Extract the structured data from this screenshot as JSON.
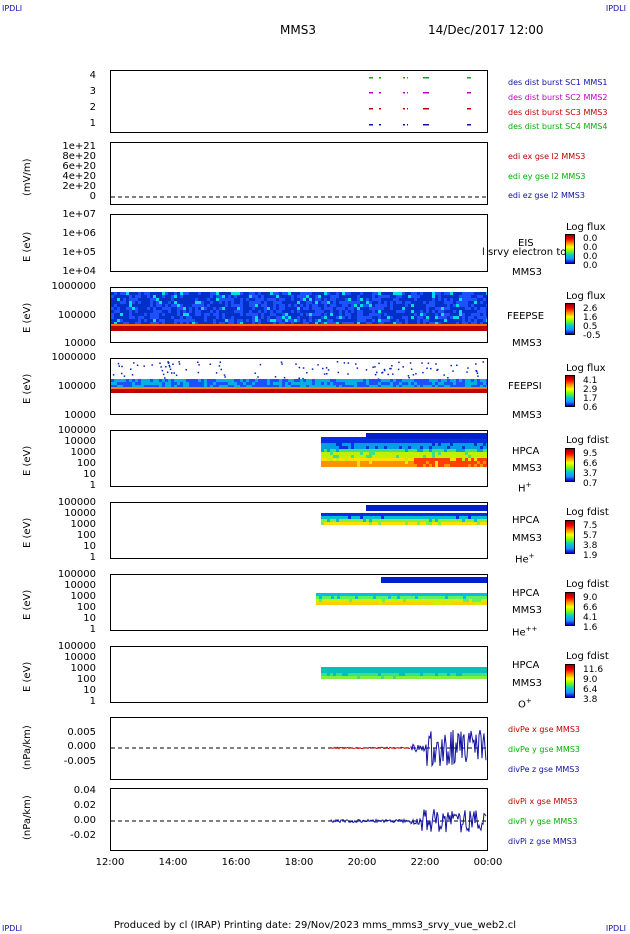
{
  "header": {
    "corner_tl": "IPDLI",
    "corner_tr": "IPDLI",
    "corner_bl": "IPDLI",
    "corner_br": "IPDLI",
    "spacecraft": "MMS3",
    "datetime": "14/Dec/2017 12:00"
  },
  "footer": {
    "text": "Produced by cl (IRAP)   Printing date: 29/Nov/2023   mms_mms3_srvy_vue_web2.cl"
  },
  "colors": {
    "sc1": "#1010a0",
    "sc2": "#c000c0",
    "sc3": "#c00000",
    "sc4": "#00b000"
  },
  "chart_data": {
    "type": "multi-panel",
    "x_axis": {
      "ticks": [
        "12:00",
        "14:00",
        "16:00",
        "18:00",
        "20:00",
        "22:00",
        "00:00"
      ]
    },
    "panels": [
      {
        "id": "burst",
        "type": "timeline",
        "yticks": [
          "4",
          "3",
          "2",
          "1"
        ],
        "legend": [
          {
            "text": "des dist burst SC1 MMS1",
            "color": "#1010a0"
          },
          {
            "text": "des dist burst SC2 MMS2",
            "color": "#c000c0"
          },
          {
            "text": "des dist burst SC3 MMS3",
            "color": "#c00000"
          },
          {
            "text": "des dist burst SC4 MMS4",
            "color": "#00b000"
          }
        ]
      },
      {
        "id": "edi",
        "type": "line",
        "ylabel": "(mV/m)",
        "yticks": [
          "1e+21",
          "8e+20",
          "6e+20",
          "4e+20",
          "2e+20",
          "0"
        ],
        "legend": [
          {
            "text": "edi ex gse l2 MMS3",
            "color": "#c00000"
          },
          {
            "text": "edi ey gse l2 MMS3",
            "color": "#00b000"
          },
          {
            "text": "edi ez gse l2 MMS3",
            "color": "#1010a0"
          }
        ]
      },
      {
        "id": "eis",
        "type": "heatmap",
        "ylabel": "E (eV)",
        "yticks": [
          "1e+07",
          "1e+06",
          "1e+05",
          "1e+04"
        ],
        "instrument": "EIS",
        "overlay": "l srvy electron to",
        "spacecraft": "MMS3",
        "cb_title": "Log flux",
        "cb_values": [
          "0.0",
          "0.0",
          "0.0",
          "0.0"
        ]
      },
      {
        "id": "feepse",
        "type": "heatmap",
        "ylabel": "E (eV)",
        "yticks": [
          "1000000",
          "100000",
          "10000"
        ],
        "instrument": "FEEPSE",
        "spacecraft": "MMS3",
        "cb_title": "Log flux",
        "cb_values": [
          "2.6",
          "1.6",
          "0.5",
          "-0.5"
        ]
      },
      {
        "id": "feepsi",
        "type": "heatmap",
        "ylabel": "E (eV)",
        "yticks": [
          "1000000",
          "100000",
          "10000"
        ],
        "instrument": "FEEPSI",
        "spacecraft": "MMS3",
        "cb_title": "Log flux",
        "cb_values": [
          "4.1",
          "2.9",
          "1.7",
          "0.6"
        ]
      },
      {
        "id": "hpca_h",
        "type": "heatmap",
        "ylabel": "E (eV)",
        "yticks": [
          "100000",
          "10000",
          "1000",
          "100",
          "10",
          "1"
        ],
        "instrument": "HPCA",
        "spacecraft": "MMS3",
        "species": "H",
        "species_sup": "+",
        "cb_title": "Log fdist",
        "cb_values": [
          "9.5",
          "6.6",
          "3.7",
          "0.7"
        ]
      },
      {
        "id": "hpca_he",
        "type": "heatmap",
        "ylabel": "E (eV)",
        "yticks": [
          "100000",
          "10000",
          "1000",
          "100",
          "10",
          "1"
        ],
        "instrument": "HPCA",
        "spacecraft": "MMS3",
        "species": "He",
        "species_sup": "+",
        "cb_title": "Log fdist",
        "cb_values": [
          "7.5",
          "5.7",
          "3.8",
          "1.9"
        ]
      },
      {
        "id": "hpca_hepp",
        "type": "heatmap",
        "ylabel": "E (eV)",
        "yticks": [
          "100000",
          "10000",
          "1000",
          "100",
          "10",
          "1"
        ],
        "instrument": "HPCA",
        "spacecraft": "MMS3",
        "species": "He",
        "species_sup": "++",
        "cb_title": "Log fdist",
        "cb_values": [
          "9.0",
          "6.6",
          "4.1",
          "1.6"
        ]
      },
      {
        "id": "hpca_o",
        "type": "heatmap",
        "ylabel": "E (eV)",
        "yticks": [
          "100000",
          "10000",
          "1000",
          "100",
          "10",
          "1"
        ],
        "instrument": "HPCA",
        "spacecraft": "MMS3",
        "species": "O",
        "species_sup": "+",
        "cb_title": "Log fdist",
        "cb_values": [
          "11.6",
          "9.0",
          "6.4",
          "3.8"
        ]
      },
      {
        "id": "divpe",
        "type": "line",
        "ylabel": "(nPa/km)",
        "yticks": [
          "0.005",
          "0.000",
          "-0.005"
        ],
        "legend": [
          {
            "text": "divPe x gse MMS3",
            "color": "#c00000"
          },
          {
            "text": "divPe y gse MMS3",
            "color": "#00b000"
          },
          {
            "text": "divPe z gse MMS3",
            "color": "#1010a0"
          }
        ]
      },
      {
        "id": "divpi",
        "type": "line",
        "ylabel": "(nPa/km)",
        "yticks": [
          "0.04",
          "0.02",
          "0.00",
          "-0.02"
        ],
        "legend": [
          {
            "text": "divPi x gse MMS3",
            "color": "#c00000"
          },
          {
            "text": "divPi y gse MMS3",
            "color": "#00b000"
          },
          {
            "text": "divPi z gse MMS3",
            "color": "#1010a0"
          }
        ]
      }
    ]
  }
}
